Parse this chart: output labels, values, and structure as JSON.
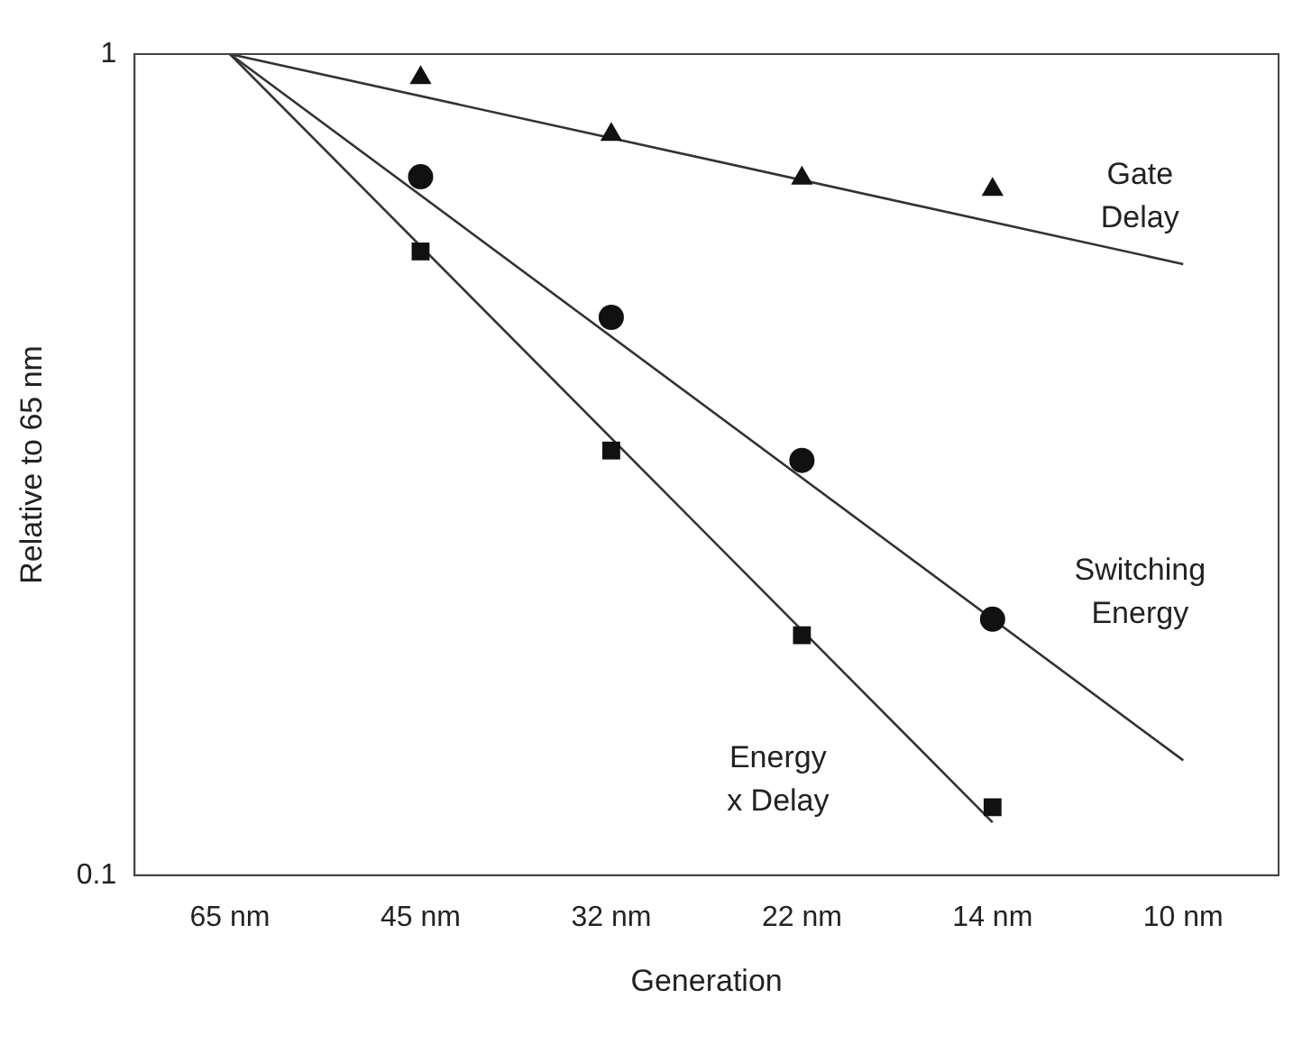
{
  "chart_data": {
    "type": "scatter",
    "xlabel": "Generation",
    "ylabel": "Relative to 65 nm",
    "categories": [
      "65 nm",
      "45 nm",
      "32 nm",
      "22 nm",
      "14 nm",
      "10 nm"
    ],
    "ylim": [
      0.1,
      1
    ],
    "yticks": [
      0.1,
      1
    ],
    "log": "y",
    "grid": false,
    "legend": false,
    "series": [
      {
        "marker": "triangle",
        "color": "#111111",
        "x": [
          "45 nm",
          "32 nm",
          "22 nm",
          "14 nm"
        ],
        "values": [
          0.936,
          0.798,
          0.706,
          0.684
        ]
      },
      {
        "marker": "circle",
        "color": "#111111",
        "x": [
          "45 nm",
          "32 nm",
          "22 nm",
          "14 nm"
        ],
        "values": [
          0.709,
          0.478,
          0.32,
          0.205
        ]
      },
      {
        "marker": "square",
        "color": "#111111",
        "x": [
          "45 nm",
          "32 nm",
          "22 nm",
          "14 nm"
        ],
        "values": [
          0.575,
          0.329,
          0.196,
          0.121
        ]
      },
      {
        "type": "line",
        "name": "Gate Delay",
        "marker": "none",
        "color": "#333333",
        "x": [
          "65 nm",
          "10 nm"
        ],
        "values": [
          1,
          0.555
        ]
      },
      {
        "type": "line",
        "name": "Switching Energy",
        "marker": "none",
        "color": "#333333",
        "x": [
          "65 nm",
          "10 nm"
        ],
        "values": [
          1,
          0.138
        ]
      },
      {
        "type": "line",
        "name": "Energy x Delay",
        "marker": "none",
        "color": "#333333",
        "x": [
          "65 nm",
          "14 nm"
        ],
        "values": [
          1,
          0.116
        ]
      }
    ]
  }
}
